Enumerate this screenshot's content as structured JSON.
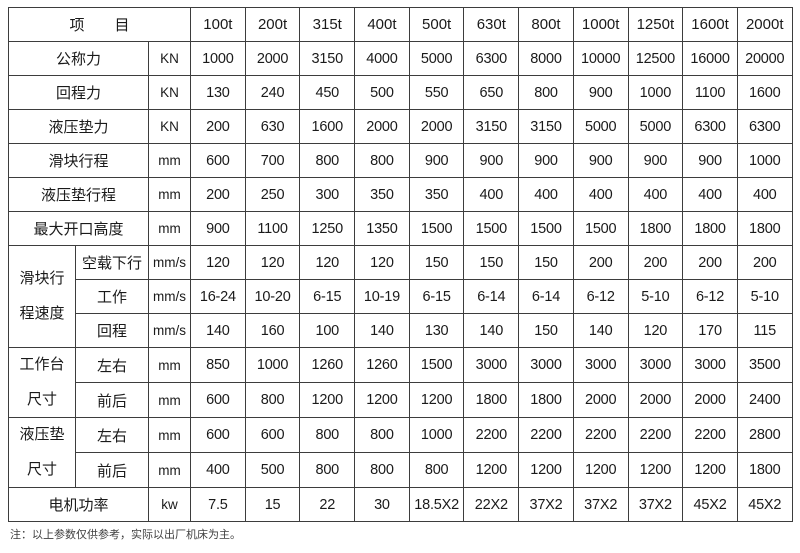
{
  "colors": {
    "border": "#3d3d3d",
    "text": "#1a1a1a",
    "background": "#ffffff",
    "note_text": "#3f3f3f"
  },
  "table": {
    "header": {
      "item_label": "项　　目",
      "columns": [
        "100t",
        "200t",
        "315t",
        "400t",
        "500t",
        "630t",
        "800t",
        "1000t",
        "1250t",
        "1600t",
        "2000t"
      ]
    },
    "rows": [
      {
        "type": "simple",
        "label": "公称力",
        "unit": "KN",
        "values": [
          "1000",
          "2000",
          "3150",
          "4000",
          "5000",
          "6300",
          "8000",
          "10000",
          "12500",
          "16000",
          "20000"
        ]
      },
      {
        "type": "simple",
        "label": "回程力",
        "unit": "KN",
        "values": [
          "130",
          "240",
          "450",
          "500",
          "550",
          "650",
          "800",
          "900",
          "1000",
          "1100",
          "1600"
        ]
      },
      {
        "type": "simple",
        "label": "液压垫力",
        "unit": "KN",
        "values": [
          "200",
          "630",
          "1600",
          "2000",
          "2000",
          "3150",
          "3150",
          "5000",
          "5000",
          "6300",
          "6300"
        ]
      },
      {
        "type": "simple",
        "label": "滑块行程",
        "unit": "mm",
        "values": [
          "600",
          "700",
          "800",
          "800",
          "900",
          "900",
          "900",
          "900",
          "900",
          "900",
          "1000"
        ]
      },
      {
        "type": "simple",
        "label": "液压垫行程",
        "unit": "mm",
        "values": [
          "200",
          "250",
          "300",
          "350",
          "350",
          "400",
          "400",
          "400",
          "400",
          "400",
          "400"
        ]
      },
      {
        "type": "simple",
        "label": "最大开口高度",
        "unit": "mm",
        "values": [
          "900",
          "1100",
          "1250",
          "1350",
          "1500",
          "1500",
          "1500",
          "1500",
          "1800",
          "1800",
          "1800"
        ]
      },
      {
        "type": "group-start",
        "group": "滑块行程速度",
        "span": 3,
        "label": "空载下行",
        "unit": "mm/s",
        "values": [
          "120",
          "120",
          "120",
          "120",
          "150",
          "150",
          "150",
          "200",
          "200",
          "200",
          "200"
        ]
      },
      {
        "type": "sub",
        "label": "工作",
        "unit": "mm/s",
        "values": [
          "16-24",
          "10-20",
          "6-15",
          "10-19",
          "6-15",
          "6-14",
          "6-14",
          "6-12",
          "5-10",
          "6-12",
          "5-10"
        ]
      },
      {
        "type": "sub",
        "label": "回程",
        "unit": "mm/s",
        "values": [
          "140",
          "160",
          "100",
          "140",
          "130",
          "140",
          "150",
          "140",
          "120",
          "170",
          "115"
        ]
      },
      {
        "type": "group-start",
        "group": "工作台尺寸",
        "span": 2,
        "label": "左右",
        "unit": "mm",
        "values": [
          "850",
          "1000",
          "1260",
          "1260",
          "1500",
          "3000",
          "3000",
          "3000",
          "3000",
          "3000",
          "3500"
        ]
      },
      {
        "type": "sub",
        "label": "前后",
        "unit": "mm",
        "values": [
          "600",
          "800",
          "1200",
          "1200",
          "1200",
          "1800",
          "1800",
          "2000",
          "2000",
          "2000",
          "2400"
        ]
      },
      {
        "type": "group-start",
        "group": "液压垫尺寸",
        "span": 2,
        "label": "左右",
        "unit": "mm",
        "values": [
          "600",
          "600",
          "800",
          "800",
          "1000",
          "2200",
          "2200",
          "2200",
          "2200",
          "2200",
          "2800"
        ]
      },
      {
        "type": "sub",
        "label": "前后",
        "unit": "mm",
        "values": [
          "400",
          "500",
          "800",
          "800",
          "800",
          "1200",
          "1200",
          "1200",
          "1200",
          "1200",
          "1800"
        ]
      },
      {
        "type": "simple",
        "label": "电机功率",
        "unit": "kw",
        "values": [
          "7.5",
          "15",
          "22",
          "30",
          "18.5X2",
          "22X2",
          "37X2",
          "37X2",
          "37X2",
          "45X2",
          "45X2"
        ]
      }
    ]
  },
  "note": "注：以上参数仅供参考，实际以出厂机床为主。"
}
